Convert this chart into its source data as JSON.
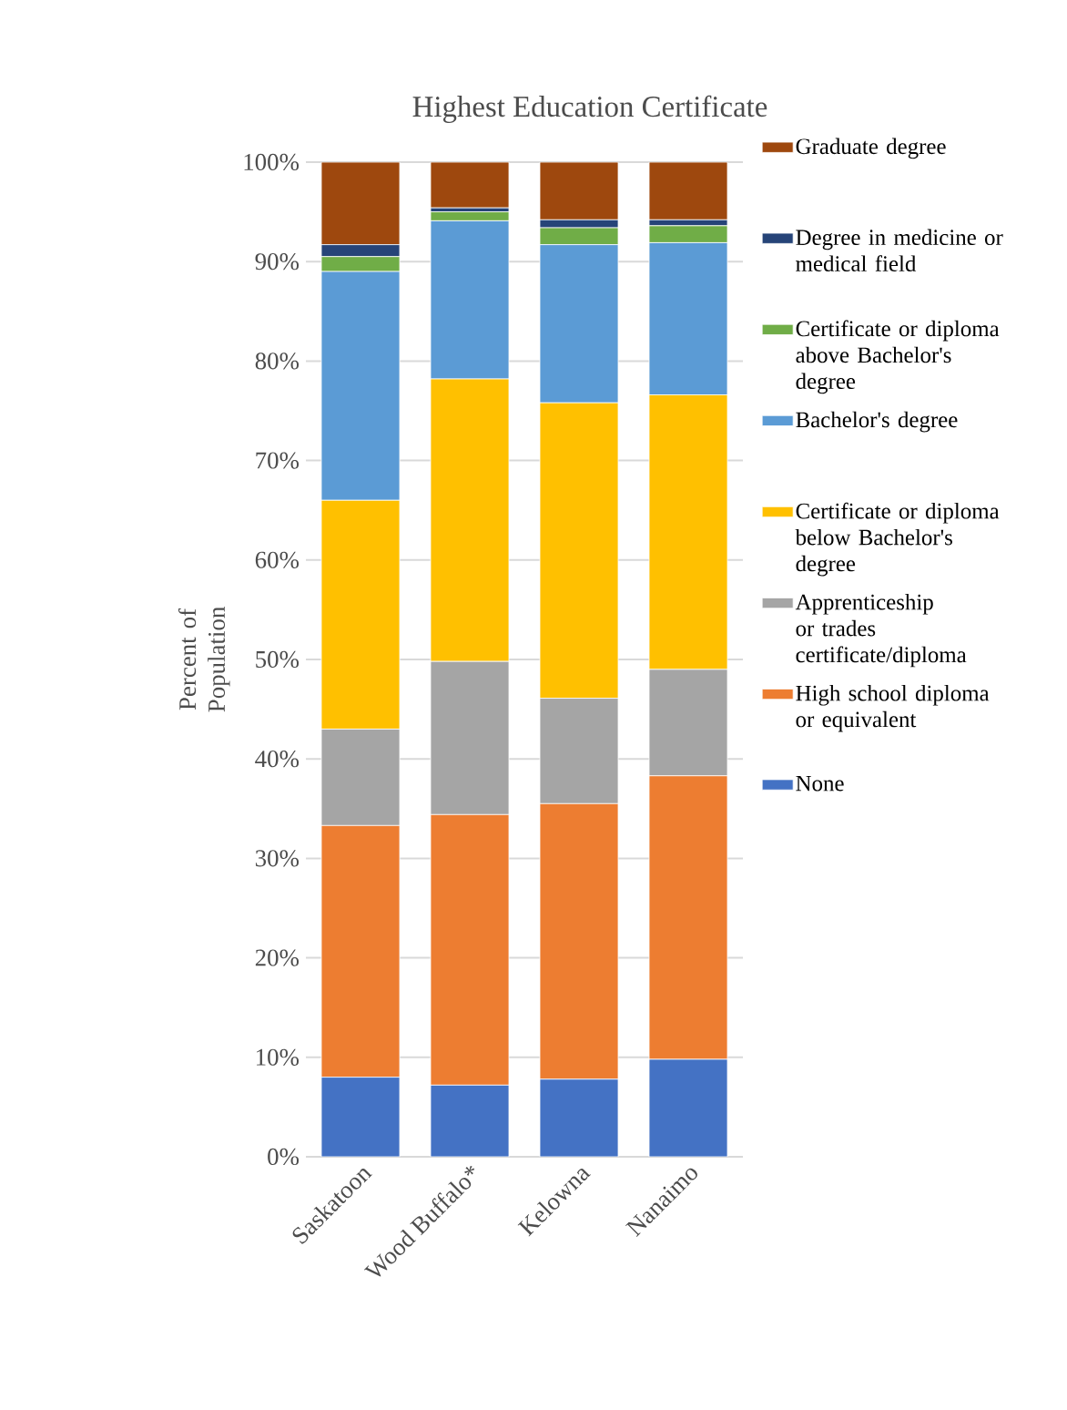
{
  "chart_data": {
    "type": "bar",
    "stacked": true,
    "title": "Highest Education Certificate",
    "ylabel": "Percent of Population",
    "categories": [
      "Saskatoon",
      "Wood Buffalo*",
      "Kelowna",
      "Nanaimo"
    ],
    "series": [
      {
        "name": "None",
        "color": "#4472c4",
        "values": [
          8.0,
          7.2,
          7.8,
          9.8
        ]
      },
      {
        "name": "High school diploma or equivalent",
        "color": "#ed7d31",
        "values": [
          25.3,
          27.2,
          27.7,
          28.5
        ]
      },
      {
        "name": "Apprenticeship or trades certificate/diploma",
        "color": "#a5a5a5",
        "values": [
          9.7,
          15.4,
          10.6,
          10.7
        ]
      },
      {
        "name": "Certificate or diploma below Bachelor's degree",
        "color": "#ffc000",
        "values": [
          23.0,
          28.4,
          29.7,
          27.6
        ]
      },
      {
        "name": "Bachelor's degree",
        "color": "#5b9bd5",
        "values": [
          23.0,
          15.9,
          15.9,
          15.3
        ]
      },
      {
        "name": "Certificate or diploma above Bachelor's degree",
        "color": "#70ad47",
        "values": [
          1.5,
          0.9,
          1.7,
          1.7
        ]
      },
      {
        "name": "Degree in medicine or medical field",
        "color": "#264478",
        "values": [
          1.2,
          0.4,
          0.8,
          0.6
        ]
      },
      {
        "name": "Graduate degree",
        "color": "#9e480e",
        "values": [
          8.3,
          4.6,
          5.8,
          5.8
        ]
      }
    ],
    "ylim": [
      0,
      100
    ],
    "yticks": [
      {
        "value": 0,
        "label": "0%"
      },
      {
        "value": 10,
        "label": "10%"
      },
      {
        "value": 20,
        "label": "20%"
      },
      {
        "value": 30,
        "label": "30%"
      },
      {
        "value": 40,
        "label": "40%"
      },
      {
        "value": 50,
        "label": "50%"
      },
      {
        "value": 60,
        "label": "60%"
      },
      {
        "value": 70,
        "label": "70%"
      },
      {
        "value": 80,
        "label": "80%"
      },
      {
        "value": 90,
        "label": "90%"
      },
      {
        "value": 100,
        "label": "100%"
      }
    ],
    "grid": "y",
    "legend": "right"
  }
}
